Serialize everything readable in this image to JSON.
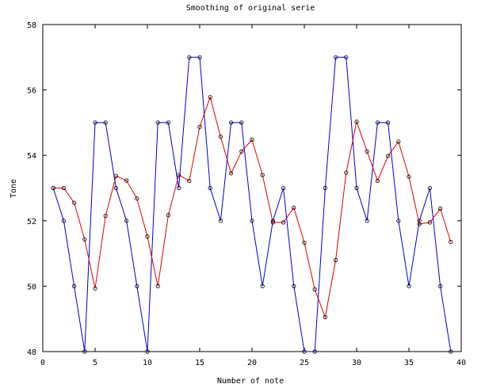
{
  "chart_data": {
    "type": "line",
    "title": "Smoothing of original serie",
    "xlabel": "Number of note",
    "ylabel": "Tone",
    "xlim": [
      0,
      40
    ],
    "ylim": [
      48,
      58
    ],
    "xticks": [
      0,
      5,
      10,
      15,
      20,
      25,
      30,
      35,
      40
    ],
    "yticks": [
      48,
      50,
      52,
      54,
      56,
      58
    ],
    "grid": false,
    "legend": "none",
    "series": [
      {
        "color": "#0000cc",
        "marker": "circle",
        "x": [
          1,
          2,
          3,
          4,
          5,
          6,
          7,
          8,
          9,
          10,
          11,
          12,
          13,
          14,
          15,
          16,
          17,
          18,
          19,
          20,
          21,
          22,
          23,
          24,
          25,
          26,
          27,
          28,
          29,
          30,
          31,
          32,
          33,
          34,
          35,
          36,
          37,
          38,
          39
        ],
        "y": [
          53,
          52,
          50,
          48,
          55,
          55,
          53,
          52,
          50,
          48,
          55,
          55,
          53,
          57,
          57,
          53,
          52,
          55,
          55,
          52,
          50,
          52,
          53,
          50,
          48,
          48,
          53,
          57,
          57,
          53,
          52,
          55,
          55,
          52,
          50,
          52,
          53,
          50,
          48
        ]
      },
      {
        "color": "#dd0000",
        "marker": "circle",
        "x": [
          1,
          2,
          3,
          4,
          5,
          6,
          7,
          8,
          9,
          10,
          11,
          12,
          13,
          14,
          15,
          16,
          17,
          18,
          19,
          20,
          21,
          22,
          23,
          24,
          25,
          26,
          27,
          28,
          29,
          30,
          31,
          32,
          33,
          34,
          35,
          36,
          37,
          38,
          39
        ],
        "y": [
          53,
          53,
          52.55,
          51.43,
          49.93,
          52.15,
          53.37,
          53.23,
          52.68,
          51.52,
          50,
          52.17,
          53.4,
          53.22,
          54.87,
          55.78,
          54.57,
          53.45,
          54.12,
          54.48,
          53.4,
          51.95,
          51.95,
          52.4,
          51.33,
          49.9,
          49.05,
          50.8,
          53.47,
          55.03,
          54.12,
          53.22,
          53.98,
          54.42,
          53.35,
          51.9,
          51.95,
          52.37,
          51.35
        ]
      }
    ]
  }
}
